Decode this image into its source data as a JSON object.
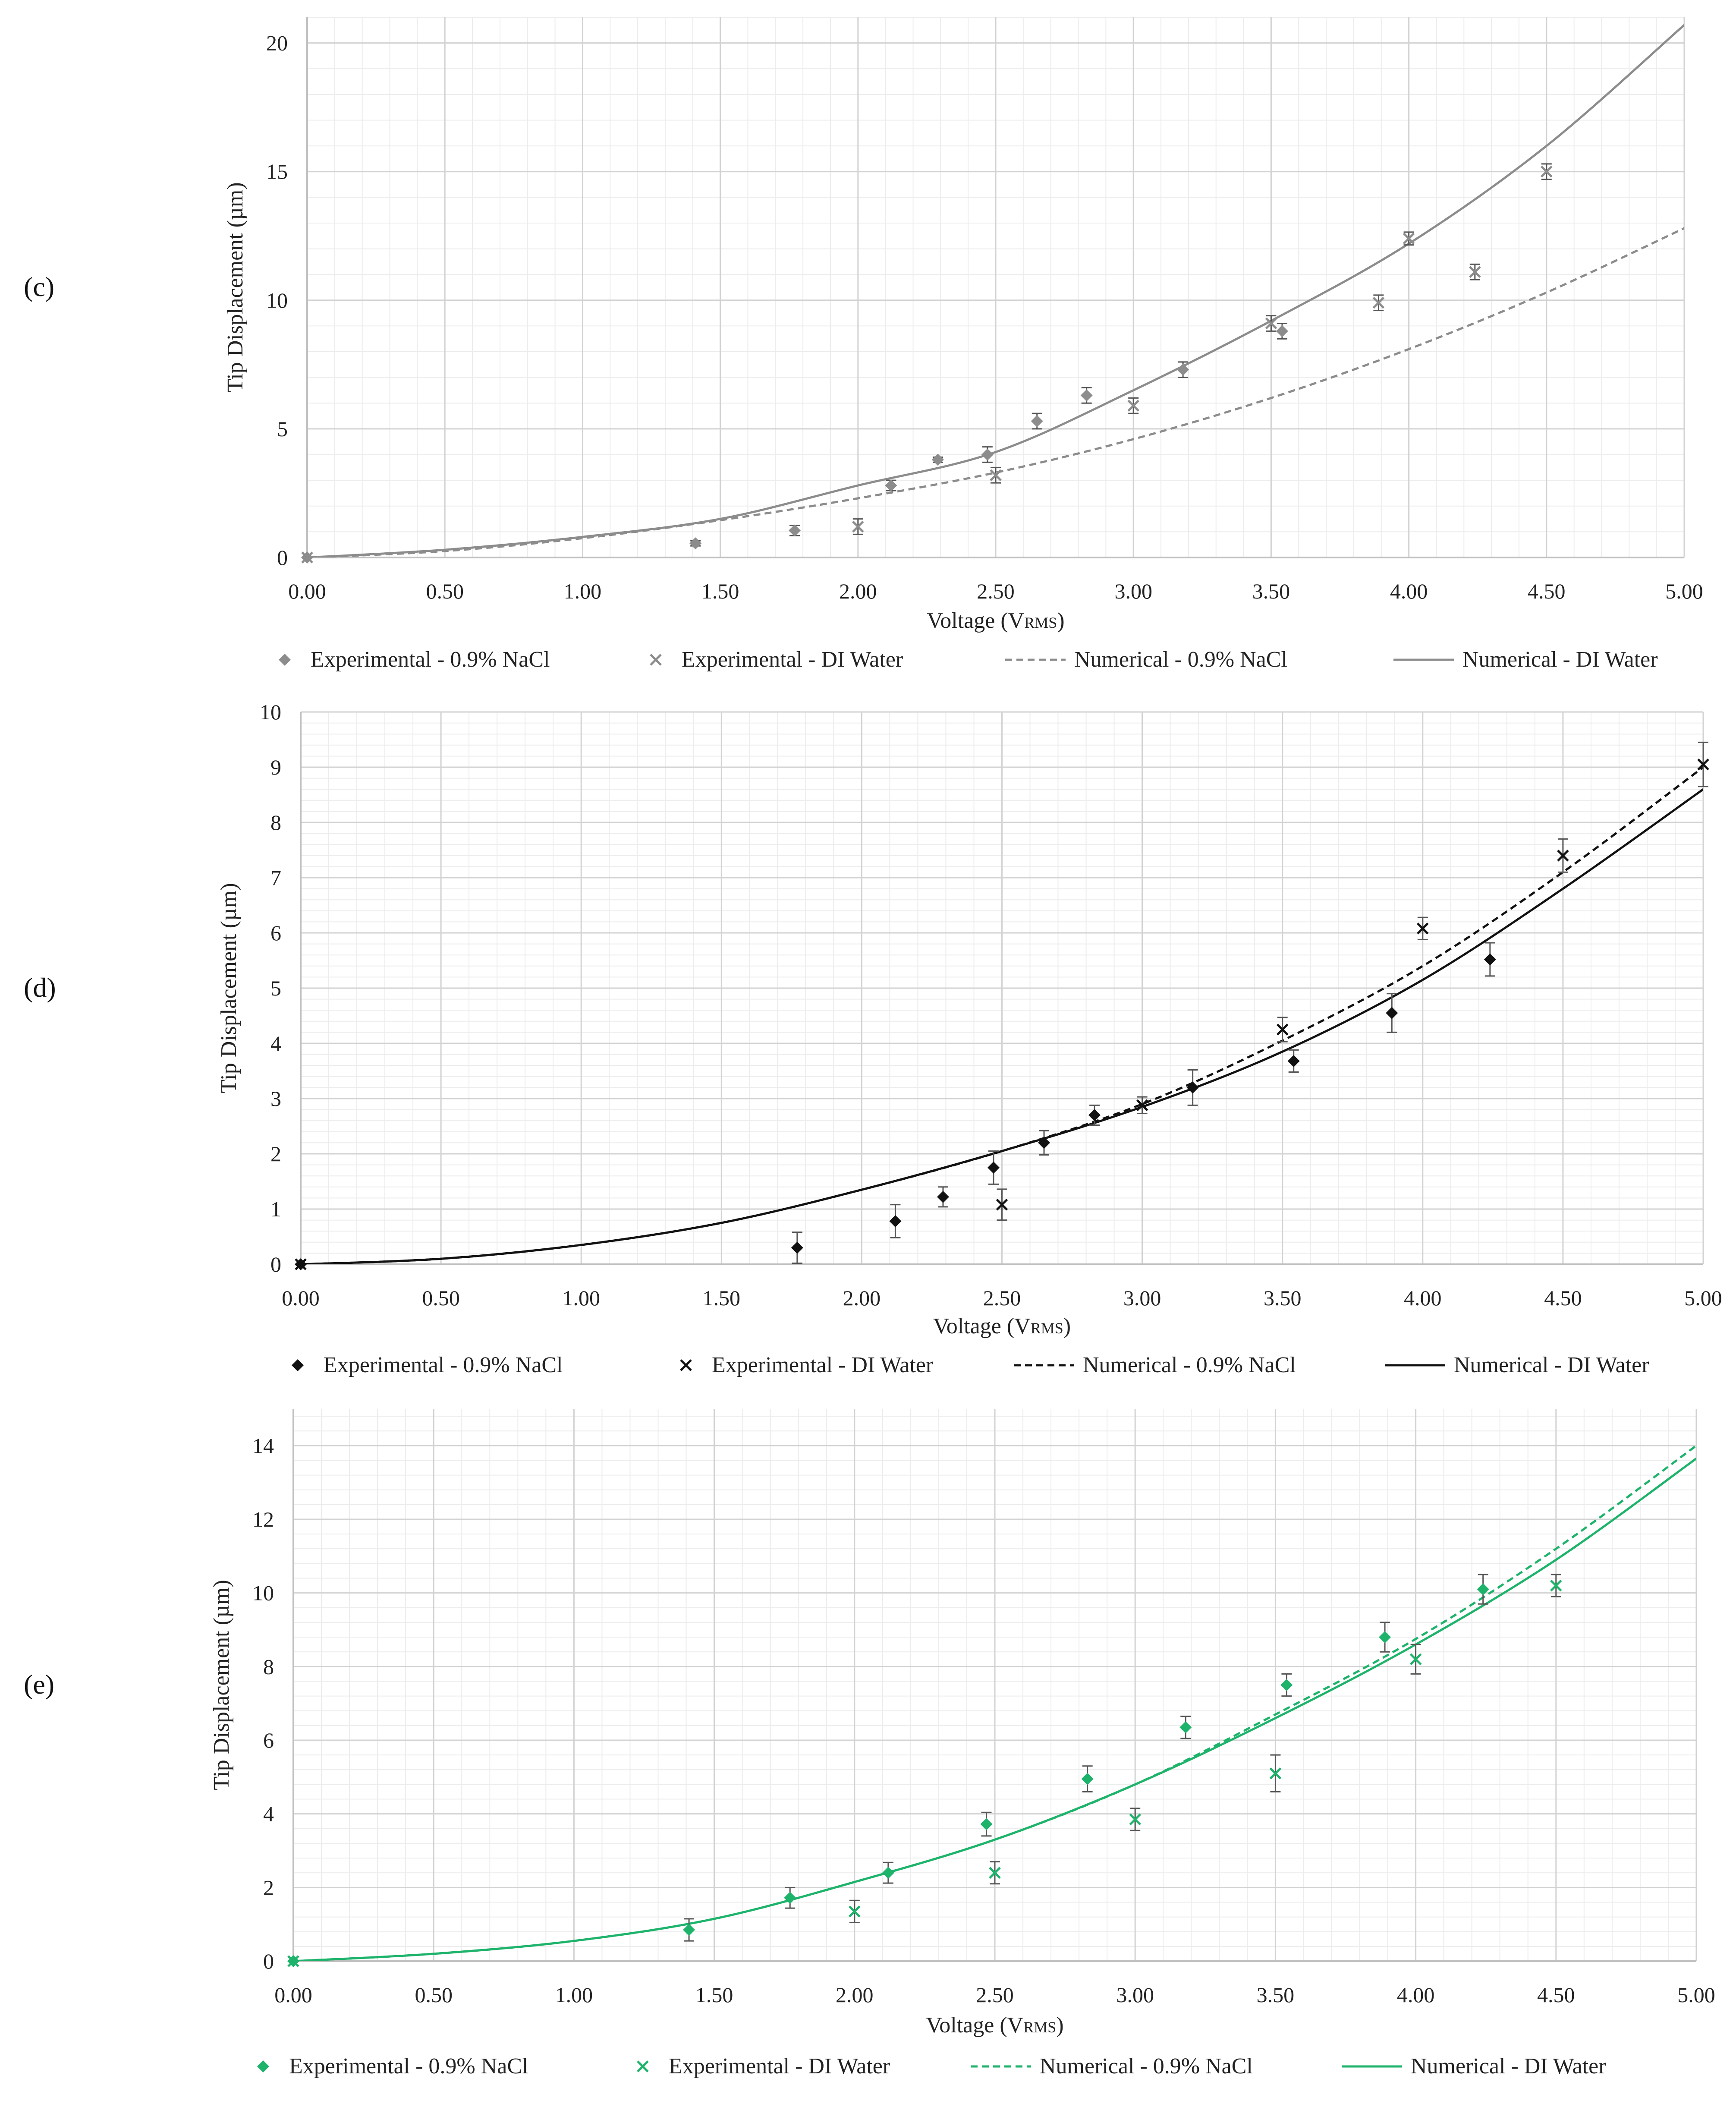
{
  "chart_data": [
    {
      "panel_label": "(c)",
      "type": "scatter",
      "xlabel": "Voltage (V",
      "xlabel_sub": "RMS",
      "xlabel_close": ")",
      "ylabel": "Tip Displacement (µm)",
      "xlim": [
        0,
        5
      ],
      "ylim": [
        0,
        21
      ],
      "xticks": [
        "0.00",
        "0.50",
        "1.00",
        "1.50",
        "2.00",
        "2.50",
        "3.00",
        "3.50",
        "4.00",
        "4.50",
        "5.00"
      ],
      "yticks": [
        "0",
        "5",
        "10",
        "15",
        "20"
      ],
      "ytick_values": [
        0,
        5,
        10,
        15,
        20
      ],
      "color": "#8c8c8c",
      "legend_placement": "bottom",
      "series": [
        {
          "name": "Experimental - 0.9% NaCl",
          "kind": "diamond",
          "x": [
            0.0,
            1.41,
            1.77,
            2.12,
            2.29,
            2.47,
            2.65,
            2.83,
            3.18,
            3.54
          ],
          "y": [
            0.0,
            0.55,
            1.05,
            2.8,
            3.8,
            4.0,
            5.3,
            6.3,
            7.3,
            8.8
          ],
          "err": [
            0,
            0.1,
            0.2,
            0.2,
            0.1,
            0.3,
            0.3,
            0.3,
            0.3,
            0.3
          ]
        },
        {
          "name": "Experimental - DI Water",
          "kind": "cross",
          "x": [
            0.0,
            2.0,
            2.5,
            3.0,
            3.5,
            3.89,
            4.0,
            4.24,
            4.5
          ],
          "y": [
            0.0,
            1.2,
            3.2,
            5.9,
            9.1,
            9.9,
            12.4,
            11.1,
            15.0
          ],
          "err": [
            0,
            0.3,
            0.3,
            0.3,
            0.3,
            0.3,
            0.25,
            0.3,
            0.3
          ]
        },
        {
          "name": "Numerical - 0.9% NaCl",
          "kind": "dashed",
          "x": [
            0,
            0.5,
            1.0,
            1.5,
            2.0,
            2.5,
            3.0,
            3.5,
            4.0,
            4.5,
            5.0
          ],
          "y": [
            0,
            0.25,
            0.75,
            1.45,
            2.3,
            3.3,
            4.6,
            6.2,
            8.1,
            10.3,
            12.8
          ]
        },
        {
          "name": "Numerical - DI Water",
          "kind": "solid",
          "x": [
            0,
            0.5,
            1.0,
            1.5,
            2.0,
            2.5,
            3.0,
            3.5,
            4.0,
            4.5,
            5.0
          ],
          "y": [
            0,
            0.3,
            0.8,
            1.5,
            2.8,
            4.1,
            6.5,
            9.2,
            12.2,
            16.0,
            20.7
          ]
        }
      ]
    },
    {
      "panel_label": "(d)",
      "type": "scatter",
      "xlabel": "Voltage (V",
      "xlabel_sub": "RMS",
      "xlabel_close": ")",
      "ylabel": "Tip Displacement (µm)",
      "xlim": [
        0,
        5
      ],
      "ylim": [
        0,
        10
      ],
      "xticks": [
        "0.00",
        "0.50",
        "1.00",
        "1.50",
        "2.00",
        "2.50",
        "3.00",
        "3.50",
        "4.00",
        "4.50",
        "5.00"
      ],
      "yticks": [
        "0",
        "1",
        "2",
        "3",
        "4",
        "5",
        "6",
        "7",
        "8",
        "9",
        "10"
      ],
      "ytick_values": [
        0,
        1,
        2,
        3,
        4,
        5,
        6,
        7,
        8,
        9,
        10
      ],
      "color": "#111111",
      "legend_placement": "bottom",
      "series": [
        {
          "name": "Experimental - 0.9% NaCl",
          "kind": "diamond",
          "x": [
            0.0,
            1.77,
            2.12,
            2.29,
            2.47,
            2.65,
            2.83,
            3.18,
            3.54,
            3.89,
            4.24
          ],
          "y": [
            0.0,
            0.3,
            0.78,
            1.22,
            1.75,
            2.2,
            2.7,
            3.2,
            3.68,
            4.55,
            5.52
          ],
          "err": [
            0,
            0.28,
            0.3,
            0.18,
            0.3,
            0.22,
            0.18,
            0.32,
            0.2,
            0.35,
            0.3
          ]
        },
        {
          "name": "Experimental - DI Water",
          "kind": "cross",
          "x": [
            0.0,
            2.5,
            3.0,
            3.5,
            4.0,
            4.5,
            5.0
          ],
          "y": [
            0.0,
            1.08,
            2.88,
            4.25,
            6.08,
            7.4,
            9.05
          ],
          "err": [
            0,
            0.28,
            0.15,
            0.22,
            0.2,
            0.3,
            0.4
          ]
        },
        {
          "name": "Numerical - 0.9% NaCl",
          "kind": "dashed",
          "x": [
            0,
            0.5,
            1.0,
            1.5,
            2.0,
            2.5,
            3.0,
            3.5,
            4.0,
            4.5,
            5.0
          ],
          "y": [
            0,
            0.1,
            0.35,
            0.75,
            1.35,
            2.05,
            2.9,
            4.05,
            5.4,
            7.1,
            9.0
          ]
        },
        {
          "name": "Numerical - DI Water",
          "kind": "solid",
          "x": [
            0,
            0.5,
            1.0,
            1.5,
            2.0,
            2.5,
            3.0,
            3.5,
            4.0,
            4.5,
            5.0
          ],
          "y": [
            0,
            0.1,
            0.35,
            0.75,
            1.35,
            2.05,
            2.85,
            3.85,
            5.15,
            6.8,
            8.6
          ]
        }
      ]
    },
    {
      "panel_label": "(e)",
      "type": "scatter",
      "xlabel": "Voltage (V",
      "xlabel_sub": "RMS",
      "xlabel_close": ")",
      "ylabel": "Tip Displacement (µm)",
      "xlim": [
        0,
        5
      ],
      "ylim": [
        0,
        15
      ],
      "xticks": [
        "0.00",
        "0.50",
        "1.00",
        "1.50",
        "2.00",
        "2.50",
        "3.00",
        "3.50",
        "4.00",
        "4.50",
        "5.00"
      ],
      "yticks": [
        "0",
        "2",
        "4",
        "6",
        "8",
        "10",
        "12",
        "14"
      ],
      "ytick_values": [
        0,
        2,
        4,
        6,
        8,
        10,
        12,
        14
      ],
      "color": "#1db36b",
      "legend_placement": "bottom",
      "series": [
        {
          "name": "Experimental - 0.9% NaCl",
          "kind": "diamond",
          "x": [
            0.0,
            1.41,
            1.77,
            2.12,
            2.47,
            2.83,
            3.18,
            3.54,
            3.89,
            4.24
          ],
          "y": [
            0.0,
            0.85,
            1.72,
            2.4,
            3.72,
            4.95,
            6.35,
            7.5,
            8.8,
            10.1
          ],
          "err": [
            0,
            0.3,
            0.28,
            0.28,
            0.32,
            0.35,
            0.3,
            0.3,
            0.4,
            0.4
          ]
        },
        {
          "name": "Experimental - DI Water",
          "kind": "cross",
          "x": [
            0.0,
            2.0,
            2.5,
            3.0,
            3.5,
            4.0,
            4.5
          ],
          "y": [
            0.0,
            1.35,
            2.4,
            3.85,
            5.1,
            8.2,
            10.2
          ],
          "err": [
            0,
            0.3,
            0.3,
            0.3,
            0.5,
            0.4,
            0.3
          ]
        },
        {
          "name": "Numerical - 0.9% NaCl",
          "kind": "dashed",
          "x": [
            0,
            0.5,
            1.0,
            1.5,
            2.0,
            2.5,
            3.0,
            3.5,
            4.0,
            4.5,
            5.0
          ],
          "y": [
            0,
            0.2,
            0.55,
            1.15,
            2.15,
            3.3,
            4.8,
            6.7,
            8.75,
            11.2,
            14.0
          ]
        },
        {
          "name": "Numerical - DI Water",
          "kind": "solid",
          "x": [
            0,
            0.5,
            1.0,
            1.5,
            2.0,
            2.5,
            3.0,
            3.5,
            4.0,
            4.5,
            5.0
          ],
          "y": [
            0,
            0.2,
            0.55,
            1.15,
            2.15,
            3.3,
            4.8,
            6.6,
            8.6,
            10.9,
            13.65
          ]
        }
      ]
    }
  ]
}
